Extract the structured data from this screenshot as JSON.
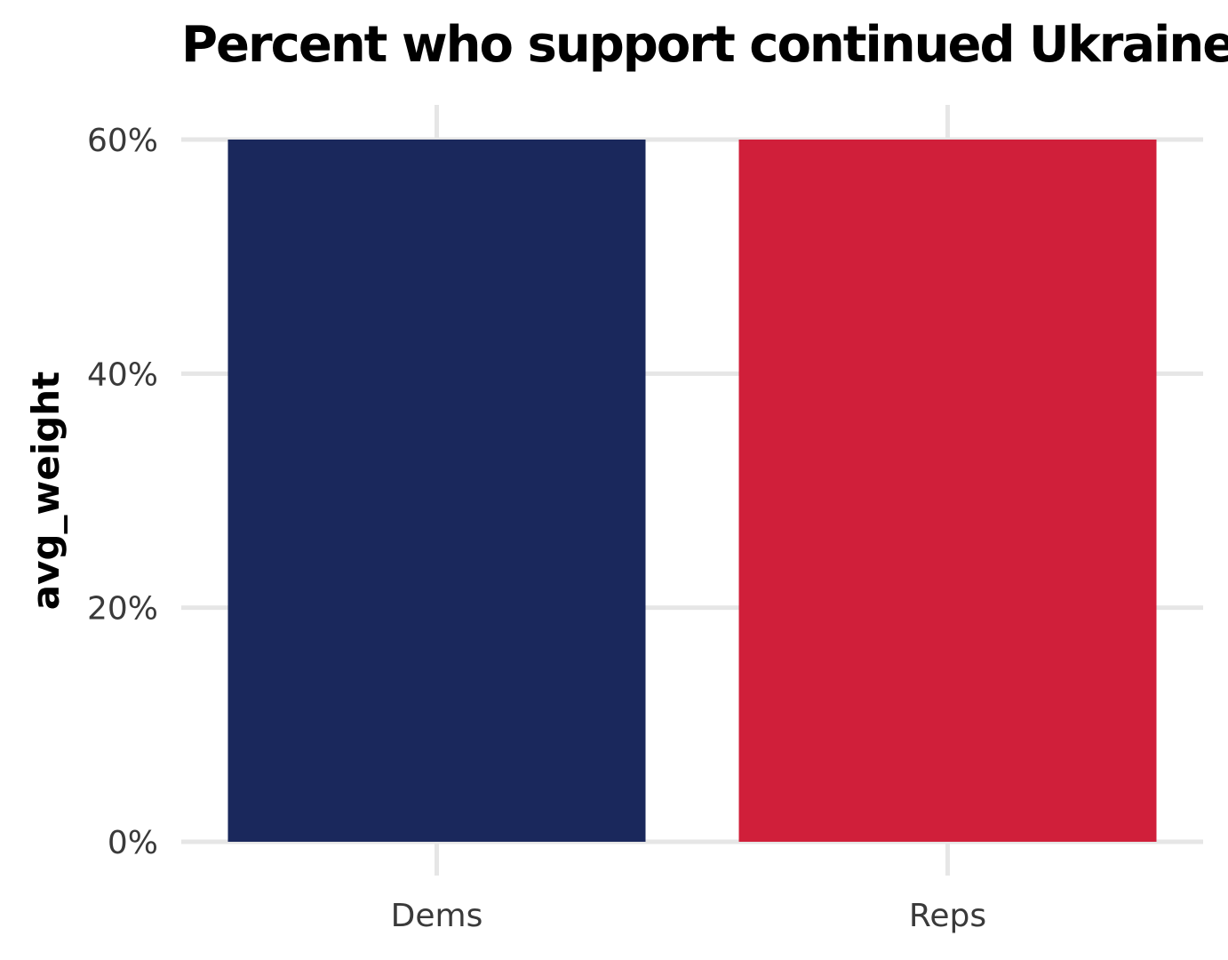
{
  "chart_data": {
    "type": "bar",
    "title": "Percent who support continued Ukraine",
    "xlabel": "",
    "ylabel": "avg_weight",
    "categories": [
      "Dems",
      "Reps"
    ],
    "values": [
      0.6,
      0.6
    ],
    "colors": [
      "#1a285c",
      "#d01f3a"
    ],
    "ylim": [
      0,
      0.6
    ],
    "yticks": [
      {
        "value": 0.0,
        "label": "0%"
      },
      {
        "value": 0.2,
        "label": "20%"
      },
      {
        "value": 0.4,
        "label": "40%"
      },
      {
        "value": 0.6,
        "label": "60%"
      }
    ],
    "grid": true,
    "grid_color": "#e6e6e6",
    "legend": "none"
  }
}
